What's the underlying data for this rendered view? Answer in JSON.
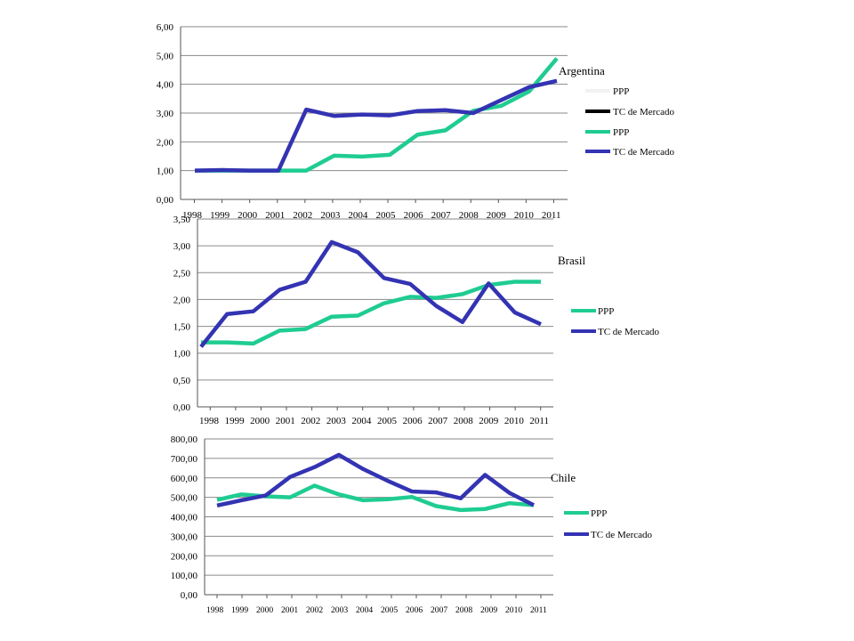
{
  "colors": {
    "ppp": "#1fcc91",
    "mercado": "#3333b3",
    "legend_ppp_ghost": "#f2f2f2",
    "legend_mercado_black": "#000000",
    "grid": "#8a8a8a"
  },
  "chart_data": [
    {
      "type": "line",
      "title": "Argentina",
      "categories": [
        "1998",
        "1999",
        "2000",
        "2001",
        "2002",
        "2003",
        "2004",
        "2005",
        "2006",
        "2007",
        "2008",
        "2009",
        "2010",
        "2011"
      ],
      "y_ticks": [
        "0,00",
        "1,00",
        "2,00",
        "3,00",
        "4,00",
        "5,00",
        "6,00"
      ],
      "ylim": [
        0,
        6
      ],
      "series": [
        {
          "name": "PPP",
          "values": [
            1.0,
            1.0,
            1.0,
            1.0,
            1.0,
            1.52,
            1.49,
            1.55,
            2.25,
            2.4,
            3.08,
            3.25,
            3.75,
            4.9
          ]
        },
        {
          "name": "TC de Mercado",
          "values": [
            1.0,
            1.02,
            1.0,
            1.0,
            3.12,
            2.9,
            2.95,
            2.92,
            3.07,
            3.1,
            3.0,
            3.45,
            3.9,
            4.12
          ]
        }
      ],
      "legend": [
        "PPP",
        "TC de Mercado",
        "PPP",
        "TC de Mercado"
      ]
    },
    {
      "type": "line",
      "title": "Brasil",
      "categories": [
        "1998",
        "1999",
        "2000",
        "2001",
        "2002",
        "2003",
        "2004",
        "2005",
        "2006",
        "2007",
        "2008",
        "2009",
        "2010",
        "2011"
      ],
      "y_ticks": [
        "0,00",
        "0,50",
        "1,00",
        "1,50",
        "2,00",
        "2,50",
        "3,00",
        "3,50"
      ],
      "ylim": [
        0,
        3.5
      ],
      "series": [
        {
          "name": "PPP",
          "values": [
            1.2,
            1.2,
            1.18,
            1.42,
            1.45,
            1.68,
            1.7,
            1.93,
            2.05,
            2.03,
            2.1,
            2.27,
            2.33,
            2.33
          ]
        },
        {
          "name": "TC de Mercado",
          "values": [
            1.12,
            1.73,
            1.78,
            2.18,
            2.33,
            3.07,
            2.88,
            2.4,
            2.29,
            1.88,
            1.58,
            2.3,
            1.76,
            1.54
          ]
        }
      ],
      "legend": [
        "PPP",
        "TC de Mercado"
      ]
    },
    {
      "type": "line",
      "title": "Chile",
      "categories": [
        "1998",
        "1999",
        "2000",
        "2001",
        "2002",
        "2003",
        "2004",
        "2005",
        "2006",
        "2007",
        "2008",
        "2009",
        "2010",
        "2011"
      ],
      "y_ticks": [
        "0,00",
        "100,00",
        "200,00",
        "300,00",
        "400,00",
        "500,00",
        "600,00",
        "700,00",
        "800,00"
      ],
      "ylim": [
        0,
        800
      ],
      "series": [
        {
          "name": "PPP",
          "values": [
            487,
            515,
            505,
            500,
            560,
            515,
            485,
            490,
            502,
            455,
            435,
            440,
            470,
            460
          ]
        },
        {
          "name": "TC de Mercado",
          "values": [
            458,
            485,
            510,
            605,
            655,
            718,
            645,
            585,
            530,
            525,
            495,
            615,
            523,
            460
          ]
        }
      ],
      "legend": [
        "PPP",
        "TC de Mercado"
      ]
    }
  ]
}
